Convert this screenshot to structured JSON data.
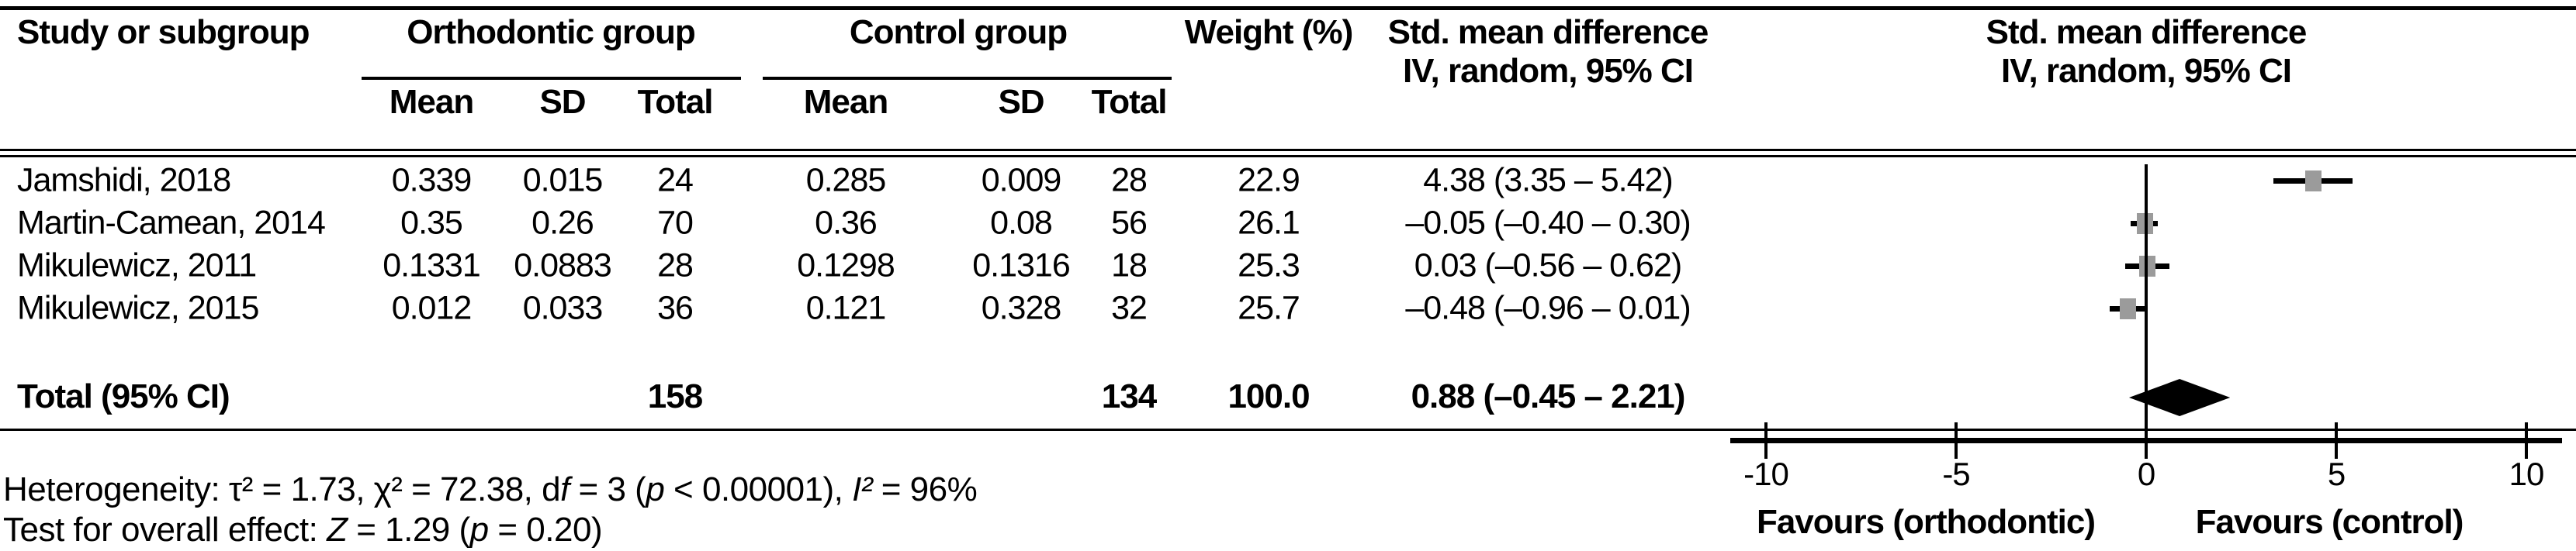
{
  "figure": {
    "header": {
      "study_col": "Study or subgroup",
      "group1": "Orthodontic group",
      "group2": "Control group",
      "weight": "Weight (%)",
      "subcols": [
        "Mean",
        "SD",
        "Total"
      ],
      "smd_text_col_line1": "Std. mean difference",
      "smd_text_col_line2": "IV, random, 95% CI",
      "smd_plot_col_line1": "Std. mean difference",
      "smd_plot_col_line2": "IV, random, 95% CI"
    },
    "rows": [
      {
        "study": "Jamshidi, 2018",
        "ortho_mean": "0.339",
        "ortho_sd": "0.015",
        "ortho_total": "24",
        "ctrl_mean": "0.285",
        "ctrl_sd": "0.009",
        "ctrl_total": "28",
        "weight": "22.9",
        "smd_ci": "4.38 (3.35 – 5.42)",
        "est": 4.38,
        "lo": 3.35,
        "hi": 5.42
      },
      {
        "study": "Martin-Camean, 2014",
        "ortho_mean": "0.35",
        "ortho_sd": "0.26",
        "ortho_total": "70",
        "ctrl_mean": "0.36",
        "ctrl_sd": "0.08",
        "ctrl_total": "56",
        "weight": "26.1",
        "smd_ci": "–0.05 (–0.40 – 0.30)",
        "est": -0.05,
        "lo": -0.4,
        "hi": 0.3
      },
      {
        "study": "Mikulewicz, 2011",
        "ortho_mean": "0.1331",
        "ortho_sd": "0.0883",
        "ortho_total": "28",
        "ctrl_mean": "0.1298",
        "ctrl_sd": "0.1316",
        "ctrl_total": "18",
        "weight": "25.3",
        "smd_ci": "0.03 (–0.56 – 0.62)",
        "est": 0.03,
        "lo": -0.56,
        "hi": 0.62
      },
      {
        "study": "Mikulewicz, 2015",
        "ortho_mean": "0.012",
        "ortho_sd": "0.033",
        "ortho_total": "36",
        "ctrl_mean": "0.121",
        "ctrl_sd": "0.328",
        "ctrl_total": "32",
        "weight": "25.7",
        "smd_ci": "–0.48 (–0.96 – 0.01)",
        "est": -0.48,
        "lo": -0.96,
        "hi": 0.01
      }
    ],
    "total_row": {
      "label": "Total (95% CI)",
      "ortho_total": "158",
      "ctrl_total": "134",
      "weight": "100.0",
      "smd_ci": "0.88 (–0.45 – 2.21)",
      "est": 0.88,
      "lo": -0.45,
      "hi": 2.21
    },
    "axis": {
      "tick_labels": [
        "-10",
        "-5",
        "0",
        "5",
        "10"
      ],
      "tick_values": [
        -10,
        -5,
        0,
        5,
        10
      ],
      "favours_left": "Favours (orthodontic)",
      "favours_right": "Favours (control)"
    },
    "footnotes": {
      "heterogeneity_parts": [
        {
          "text": "Heterogeneity: τ² = 1.73, χ² = 72.38, d",
          "italic": false
        },
        {
          "text": "f",
          "italic": true
        },
        {
          "text": " = 3 (",
          "italic": false
        },
        {
          "text": "p",
          "italic": true
        },
        {
          "text": " < 0.00001), ",
          "italic": false
        },
        {
          "text": "I²",
          "italic": true
        },
        {
          "text": " = 96%",
          "italic": false
        }
      ],
      "overall_effect_parts": [
        {
          "text": "Test for overall effect: ",
          "italic": false
        },
        {
          "text": "Z",
          "italic": true
        },
        {
          "text": " = 1.29 (",
          "italic": false
        },
        {
          "text": "p",
          "italic": true
        },
        {
          "text": " = 0.20)",
          "italic": false
        }
      ]
    },
    "colors": {
      "marker_gray": "#9b9b9b",
      "diamond_black": "#000000",
      "line_black": "#000000",
      "background": "#ffffff"
    }
  },
  "chart_data": {
    "type": "scatter",
    "subtype": "forest-plot",
    "title": "Std. mean difference, IV, random, 95% CI",
    "effect_measure": "Std. mean difference",
    "model": "IV, random, 95% CI",
    "xlim": [
      -10,
      10
    ],
    "x_ticks": [
      -10,
      -5,
      0,
      5,
      10
    ],
    "x_label_left": "Favours (orthodontic)",
    "x_label_right": "Favours (control)",
    "grid": false,
    "studies": [
      {
        "study": "Jamshidi, 2018",
        "ortho": {
          "mean": 0.339,
          "sd": 0.015,
          "total": 24
        },
        "control": {
          "mean": 0.285,
          "sd": 0.009,
          "total": 28
        },
        "weight_pct": 22.9,
        "smd": 4.38,
        "ci_low": 3.35,
        "ci_high": 5.42
      },
      {
        "study": "Martin-Camean, 2014",
        "ortho": {
          "mean": 0.35,
          "sd": 0.26,
          "total": 70
        },
        "control": {
          "mean": 0.36,
          "sd": 0.08,
          "total": 56
        },
        "weight_pct": 26.1,
        "smd": -0.05,
        "ci_low": -0.4,
        "ci_high": 0.3
      },
      {
        "study": "Mikulewicz, 2011",
        "ortho": {
          "mean": 0.1331,
          "sd": 0.0883,
          "total": 28
        },
        "control": {
          "mean": 0.1298,
          "sd": 0.1316,
          "total": 18
        },
        "weight_pct": 25.3,
        "smd": 0.03,
        "ci_low": -0.56,
        "ci_high": 0.62
      },
      {
        "study": "Mikulewicz, 2015",
        "ortho": {
          "mean": 0.012,
          "sd": 0.033,
          "total": 36
        },
        "control": {
          "mean": 0.121,
          "sd": 0.328,
          "total": 32
        },
        "weight_pct": 25.7,
        "smd": -0.48,
        "ci_low": -0.96,
        "ci_high": 0.01
      }
    ],
    "total": {
      "label": "Total (95% CI)",
      "ortho_total": 158,
      "control_total": 134,
      "weight_pct": 100.0,
      "smd": 0.88,
      "ci_low": -0.45,
      "ci_high": 2.21
    },
    "heterogeneity": {
      "tau2": 1.73,
      "chi2": 72.38,
      "df": 3,
      "p": "< 0.00001",
      "i2": "96%"
    },
    "overall_effect": {
      "z": 1.29,
      "p": "= 0.20"
    }
  }
}
